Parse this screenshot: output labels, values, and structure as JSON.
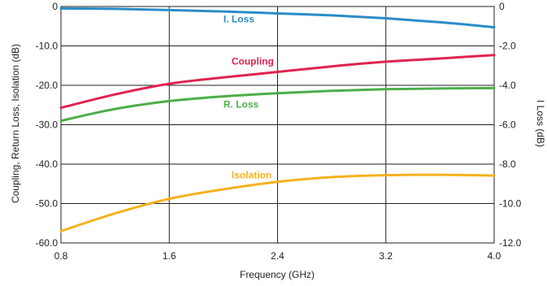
{
  "chart_data": {
    "type": "line",
    "xlabel": "Frequency (GHz)",
    "ylabel_left": "Coupling, Return Loss, Isolation (dB)",
    "ylabel_right": "I Loss (dB)",
    "x_ticks": [
      "0.8",
      "1.6",
      "2.4",
      "3.2",
      "4.0"
    ],
    "y_left_ticks": [
      "0",
      "-10.0",
      "-20.0",
      "-30.0",
      "-40.0",
      "-50.0",
      "-60.0"
    ],
    "y_right_ticks": [
      "0",
      "-2.0",
      "-4.0",
      "-6.0",
      "-8.0",
      "-10.0",
      "-12.0"
    ],
    "xlim": [
      0.8,
      4.0
    ],
    "ylim_left": [
      -60,
      0
    ],
    "ylim_right": [
      -12,
      0
    ],
    "grid": true,
    "series": [
      {
        "name": "I. Loss",
        "axis": "right",
        "color": "#2a8cc8",
        "x": [
          0.8,
          1.2,
          1.6,
          2.0,
          2.4,
          2.8,
          3.2,
          3.6,
          4.0
        ],
        "y": [
          -0.1,
          -0.12,
          -0.18,
          -0.25,
          -0.35,
          -0.45,
          -0.6,
          -0.8,
          -1.05
        ]
      },
      {
        "name": "Coupling",
        "axis": "left",
        "color": "#e0234e",
        "x": [
          0.8,
          1.2,
          1.6,
          2.0,
          2.4,
          2.8,
          3.2,
          3.6,
          4.0
        ],
        "y": [
          -25.7,
          -22.3,
          -19.6,
          -18.0,
          -16.6,
          -15.2,
          -14.0,
          -13.2,
          -12.3
        ]
      },
      {
        "name": "R. Loss",
        "axis": "left",
        "color": "#4cae4a",
        "x": [
          0.8,
          1.2,
          1.6,
          2.0,
          2.4,
          2.8,
          3.2,
          3.6,
          4.0
        ],
        "y": [
          -29.0,
          -26.0,
          -24.0,
          -22.8,
          -22.0,
          -21.4,
          -21.0,
          -20.8,
          -20.7
        ]
      },
      {
        "name": "Isolation",
        "axis": "left",
        "color": "#f5b21e",
        "x": [
          0.8,
          1.2,
          1.6,
          2.0,
          2.4,
          2.8,
          3.2,
          3.6,
          4.0
        ],
        "y": [
          -57.0,
          -52.5,
          -48.8,
          -46.4,
          -44.5,
          -43.3,
          -42.8,
          -42.7,
          -42.9
        ]
      }
    ],
    "labels": [
      {
        "text": "I. Loss",
        "series": "I. Loss",
        "x": 2.0,
        "y": -0.8,
        "axis": "right"
      },
      {
        "text": "Coupling",
        "series": "Coupling",
        "x": 2.06,
        "y": -14.7,
        "axis": "left"
      },
      {
        "text": "R. Loss",
        "series": "R. Loss",
        "x": 2.0,
        "y": -25.7,
        "axis": "left"
      },
      {
        "text": "Isolation",
        "series": "Isolation",
        "x": 2.06,
        "y": -43.6,
        "axis": "left"
      }
    ]
  }
}
